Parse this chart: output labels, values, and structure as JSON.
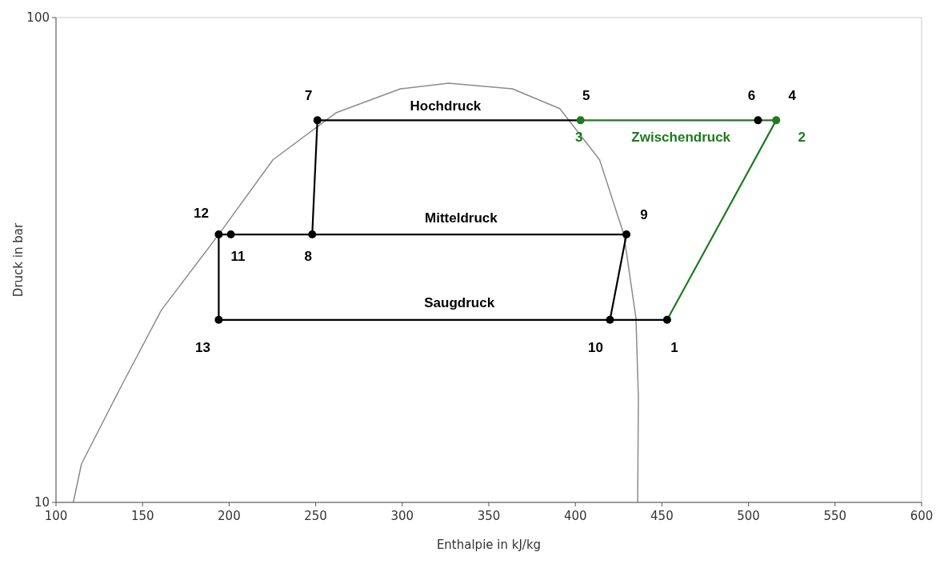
{
  "chart_data": {
    "type": "line",
    "xlabel": "Enthalpie in kJ/kg",
    "ylabel": "Druck in bar",
    "log": "y",
    "grid": false,
    "xlim": [
      100,
      600
    ],
    "xticks": [
      100,
      150,
      200,
      250,
      300,
      350,
      400,
      450,
      500,
      550,
      600
    ],
    "ylim": [
      10,
      100
    ],
    "yticks": [
      10,
      100
    ],
    "series": [
      {
        "color": "#8c8c8c",
        "x": [
          110,
          114.7,
          137.8,
          160.8,
          194,
          225.3,
          262,
          299,
          326.7,
          363.6,
          391,
          414,
          428,
          435,
          436.4,
          436
        ],
        "values": [
          10,
          12,
          17.4,
          24.9,
          35.7,
          50.9,
          63.7,
          71.3,
          73.2,
          71.3,
          64.9,
          50.9,
          35.7,
          24,
          16.5,
          10
        ]
      },
      {
        "color": "#000000",
        "x": [
          403,
          251,
          248
        ],
        "values": [
          61.4,
          61.4,
          35.7
        ]
      },
      {
        "color": "#000000",
        "x": [
          420,
          429.5,
          194,
          194,
          453
        ],
        "values": [
          23.8,
          35.7,
          35.7,
          23.8,
          23.8
        ]
      },
      {
        "color": "#1f7a1f",
        "x": [
          403,
          516,
          453
        ],
        "values": [
          61.4,
          61.4,
          23.8
        ]
      },
      {
        "type": "scatter",
        "marker": "circle",
        "color": "#000000",
        "x": [
          251,
          505.5,
          194,
          201,
          248,
          429.5,
          194,
          420,
          453
        ],
        "values": [
          61.4,
          61.4,
          35.7,
          35.7,
          35.7,
          35.7,
          23.8,
          23.8,
          23.8
        ]
      },
      {
        "type": "scatter",
        "marker": "circle",
        "color": "#1f7a1f",
        "x": [
          403,
          516
        ],
        "values": [
          61.4,
          61.4
        ]
      }
    ],
    "annotations": [
      {
        "text": "7",
        "x": 251,
        "y": 61.4
      },
      {
        "text": "5",
        "x": 403,
        "y": 61.4
      },
      {
        "text": "6",
        "x": 505.5,
        "y": 61.4
      },
      {
        "text": "4",
        "x": 516,
        "y": 61.4
      },
      {
        "text": "Hochdruck",
        "x": 325,
        "y": 61.4
      },
      {
        "text": "3",
        "x": 403,
        "y": 61.4
      },
      {
        "text": "Zwischendruck",
        "x": 461,
        "y": 61.4
      },
      {
        "text": "2",
        "x": 516,
        "y": 61.4
      },
      {
        "text": "12",
        "x": 194,
        "y": 35.7
      },
      {
        "text": "9",
        "x": 429.5,
        "y": 35.7
      },
      {
        "text": "Mitteldruck",
        "x": 334,
        "y": 35.7
      },
      {
        "text": "11",
        "x": 201,
        "y": 35.7
      },
      {
        "text": "8",
        "x": 248,
        "y": 35.7
      },
      {
        "text": "Saugdruck",
        "x": 333,
        "y": 23.8
      },
      {
        "text": "13",
        "x": 194,
        "y": 23.8
      },
      {
        "text": "10",
        "x": 420,
        "y": 23.8
      },
      {
        "text": "1",
        "x": 453,
        "y": 23.8
      }
    ]
  }
}
